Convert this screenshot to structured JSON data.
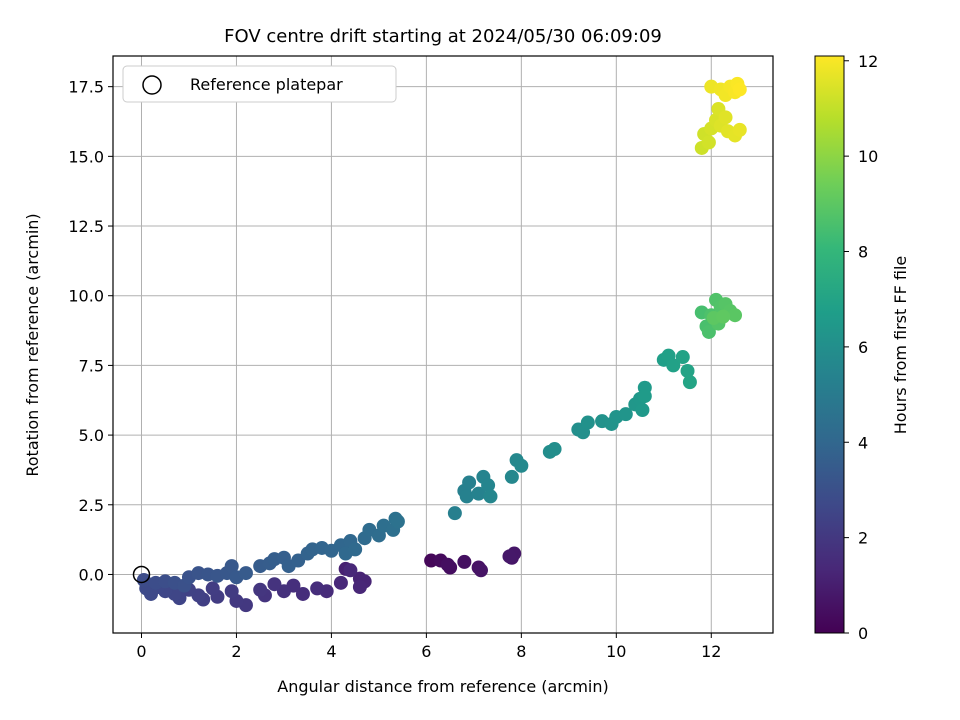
{
  "chart_data": {
    "type": "scatter",
    "title": "FOV centre drift starting at 2024/05/30 06:09:09",
    "xlabel": "Angular distance from reference (arcmin)",
    "ylabel": "Rotation from reference (arcmin)",
    "xlim": [
      -0.6,
      13.3
    ],
    "ylim": [
      -2.1,
      18.6
    ],
    "xticks": [
      0,
      2,
      4,
      6,
      8,
      10,
      12
    ],
    "xtick_labels": [
      "0",
      "2",
      "4",
      "6",
      "8",
      "10",
      "12"
    ],
    "yticks": [
      0.0,
      2.5,
      5.0,
      7.5,
      10.0,
      12.5,
      15.0,
      17.5
    ],
    "ytick_labels": [
      "0.0",
      "2.5",
      "5.0",
      "7.5",
      "10.0",
      "12.5",
      "15.0",
      "17.5"
    ],
    "grid": true,
    "legend": {
      "placement": "top-left",
      "entries": [
        {
          "label": "Reference platepar",
          "marker": "open-circle",
          "color": "#000000"
        }
      ]
    },
    "reference_point": {
      "x": 0,
      "y": 0
    },
    "colorbar": {
      "label": "Hours from first FF file",
      "colormap": "viridis",
      "range": [
        0,
        12.1
      ],
      "ticks": [
        0,
        2,
        4,
        6,
        8,
        10,
        12
      ],
      "tick_labels": [
        "0",
        "2",
        "4",
        "6",
        "8",
        "10",
        "12"
      ],
      "colors": [
        "#440154",
        "#482878",
        "#3e4989",
        "#31688e",
        "#26828e",
        "#1f9e89",
        "#35b779",
        "#6ece58",
        "#b5de2b",
        "#fde725"
      ]
    },
    "series": [
      {
        "values": [
          [
            6.1,
            0.5,
            0.2
          ],
          [
            6.3,
            0.5,
            0.3
          ],
          [
            6.5,
            0.25,
            0.4
          ],
          [
            6.45,
            0.35,
            0.45
          ],
          [
            6.8,
            0.45,
            0.5
          ],
          [
            7.1,
            0.25,
            0.6
          ],
          [
            7.15,
            0.15,
            0.65
          ],
          [
            7.8,
            0.6,
            0.7
          ],
          [
            7.85,
            0.75,
            0.75
          ],
          [
            7.75,
            0.65,
            0.8
          ],
          [
            4.3,
            0.2,
            1.1
          ],
          [
            4.6,
            -0.15,
            1.2
          ],
          [
            4.7,
            -0.25,
            1.25
          ],
          [
            4.6,
            -0.45,
            1.3
          ],
          [
            4.4,
            0.15,
            1.35
          ],
          [
            4.2,
            -0.3,
            1.4
          ],
          [
            3.9,
            -0.6,
            1.5
          ],
          [
            3.7,
            -0.5,
            1.55
          ],
          [
            3.4,
            -0.7,
            1.6
          ],
          [
            3.2,
            -0.4,
            1.65
          ],
          [
            3.0,
            -0.6,
            1.7
          ],
          [
            2.8,
            -0.35,
            1.8
          ],
          [
            2.6,
            -0.75,
            1.85
          ],
          [
            2.5,
            -0.55,
            1.9
          ],
          [
            2.2,
            -1.1,
            2.0
          ],
          [
            2.0,
            -0.95,
            2.05
          ],
          [
            1.9,
            -0.6,
            2.1
          ],
          [
            1.6,
            -0.8,
            2.15
          ],
          [
            1.5,
            -0.5,
            2.2
          ],
          [
            1.3,
            -0.9,
            2.3
          ],
          [
            1.2,
            -0.75,
            2.35
          ],
          [
            1.0,
            -0.55,
            2.4
          ],
          [
            0.8,
            -0.85,
            2.5
          ],
          [
            0.7,
            -0.7,
            2.55
          ],
          [
            0.5,
            -0.6,
            2.6
          ],
          [
            0.35,
            -0.45,
            2.65
          ],
          [
            0.2,
            -0.7,
            2.7
          ],
          [
            0.1,
            -0.5,
            2.75
          ],
          [
            0.05,
            -0.2,
            2.8
          ],
          [
            0.3,
            -0.3,
            2.85
          ],
          [
            0.5,
            -0.25,
            2.9
          ],
          [
            0.7,
            -0.3,
            3.0
          ],
          [
            0.9,
            -0.4,
            3.05
          ],
          [
            1.0,
            -0.1,
            3.1
          ],
          [
            1.2,
            0.05,
            3.15
          ],
          [
            1.4,
            0.0,
            3.2
          ],
          [
            1.6,
            -0.05,
            3.25
          ],
          [
            1.8,
            0.05,
            3.3
          ],
          [
            1.9,
            0.3,
            3.35
          ],
          [
            2.0,
            -0.1,
            3.4
          ],
          [
            2.2,
            0.05,
            3.45
          ],
          [
            2.5,
            0.3,
            3.5
          ],
          [
            2.7,
            0.4,
            3.55
          ],
          [
            2.8,
            0.55,
            3.6
          ],
          [
            3.0,
            0.6,
            3.65
          ],
          [
            3.1,
            0.3,
            3.7
          ],
          [
            3.3,
            0.5,
            3.75
          ],
          [
            3.5,
            0.75,
            3.8
          ],
          [
            3.6,
            0.9,
            3.85
          ],
          [
            3.8,
            0.95,
            3.9
          ],
          [
            4.0,
            0.85,
            3.95
          ],
          [
            4.2,
            1.05,
            4.0
          ],
          [
            4.4,
            1.2,
            4.05
          ],
          [
            4.3,
            0.75,
            4.1
          ],
          [
            4.5,
            0.9,
            4.15
          ],
          [
            4.7,
            1.3,
            4.2
          ],
          [
            4.8,
            1.6,
            4.25
          ],
          [
            5.0,
            1.4,
            4.3
          ],
          [
            5.1,
            1.75,
            4.4
          ],
          [
            5.3,
            1.6,
            4.45
          ],
          [
            5.35,
            2.0,
            4.5
          ],
          [
            5.4,
            1.9,
            4.55
          ],
          [
            6.6,
            2.2,
            5.2
          ],
          [
            6.8,
            3.0,
            5.25
          ],
          [
            6.9,
            3.3,
            5.3
          ],
          [
            6.85,
            2.8,
            5.35
          ],
          [
            7.1,
            2.9,
            5.4
          ],
          [
            7.2,
            3.5,
            5.45
          ],
          [
            7.3,
            3.2,
            5.5
          ],
          [
            7.35,
            2.8,
            5.55
          ],
          [
            7.8,
            3.5,
            5.6
          ],
          [
            7.9,
            4.1,
            5.65
          ],
          [
            8.0,
            3.9,
            5.7
          ],
          [
            8.6,
            4.4,
            5.9
          ],
          [
            8.7,
            4.5,
            5.95
          ],
          [
            9.2,
            5.2,
            6.0
          ],
          [
            9.3,
            5.1,
            6.05
          ],
          [
            9.4,
            5.45,
            6.1
          ],
          [
            9.7,
            5.5,
            6.15
          ],
          [
            9.9,
            5.4,
            6.2
          ],
          [
            10.0,
            5.65,
            6.25
          ],
          [
            10.2,
            5.75,
            6.3
          ],
          [
            10.4,
            6.1,
            6.4
          ],
          [
            10.5,
            6.3,
            6.45
          ],
          [
            10.55,
            5.9,
            6.5
          ],
          [
            10.6,
            6.7,
            6.55
          ],
          [
            10.6,
            6.4,
            6.6
          ],
          [
            11.0,
            7.7,
            6.8
          ],
          [
            11.1,
            7.85,
            6.85
          ],
          [
            11.2,
            7.5,
            6.9
          ],
          [
            11.4,
            7.8,
            6.95
          ],
          [
            11.5,
            7.3,
            7.0
          ],
          [
            11.55,
            6.9,
            7.05
          ],
          [
            11.8,
            9.4,
            8.5
          ],
          [
            11.9,
            8.9,
            8.55
          ],
          [
            11.95,
            8.7,
            8.6
          ],
          [
            12.0,
            9.3,
            8.65
          ],
          [
            12.1,
            9.85,
            8.7
          ],
          [
            12.2,
            9.6,
            8.75
          ],
          [
            12.15,
            9.0,
            8.8
          ],
          [
            12.3,
            9.7,
            8.85
          ],
          [
            12.4,
            9.45,
            8.9
          ],
          [
            12.5,
            9.3,
            8.95
          ],
          [
            12.05,
            9.2,
            9.0
          ],
          [
            12.25,
            9.25,
            9.05
          ],
          [
            11.8,
            15.3,
            11.2
          ],
          [
            11.85,
            15.8,
            11.25
          ],
          [
            11.95,
            15.5,
            11.3
          ],
          [
            12.0,
            16.0,
            11.35
          ],
          [
            12.1,
            16.3,
            11.4
          ],
          [
            12.15,
            16.7,
            11.45
          ],
          [
            12.2,
            16.1,
            11.5
          ],
          [
            12.3,
            16.4,
            11.55
          ],
          [
            12.35,
            15.9,
            11.6
          ],
          [
            12.5,
            15.75,
            11.65
          ],
          [
            12.6,
            15.95,
            11.7
          ],
          [
            12.0,
            17.5,
            11.8
          ],
          [
            12.2,
            17.4,
            11.85
          ],
          [
            12.3,
            17.2,
            11.9
          ],
          [
            12.4,
            17.5,
            11.95
          ],
          [
            12.5,
            17.3,
            12.0
          ],
          [
            12.55,
            17.6,
            12.05
          ],
          [
            12.6,
            17.4,
            12.1
          ]
        ]
      }
    ]
  }
}
